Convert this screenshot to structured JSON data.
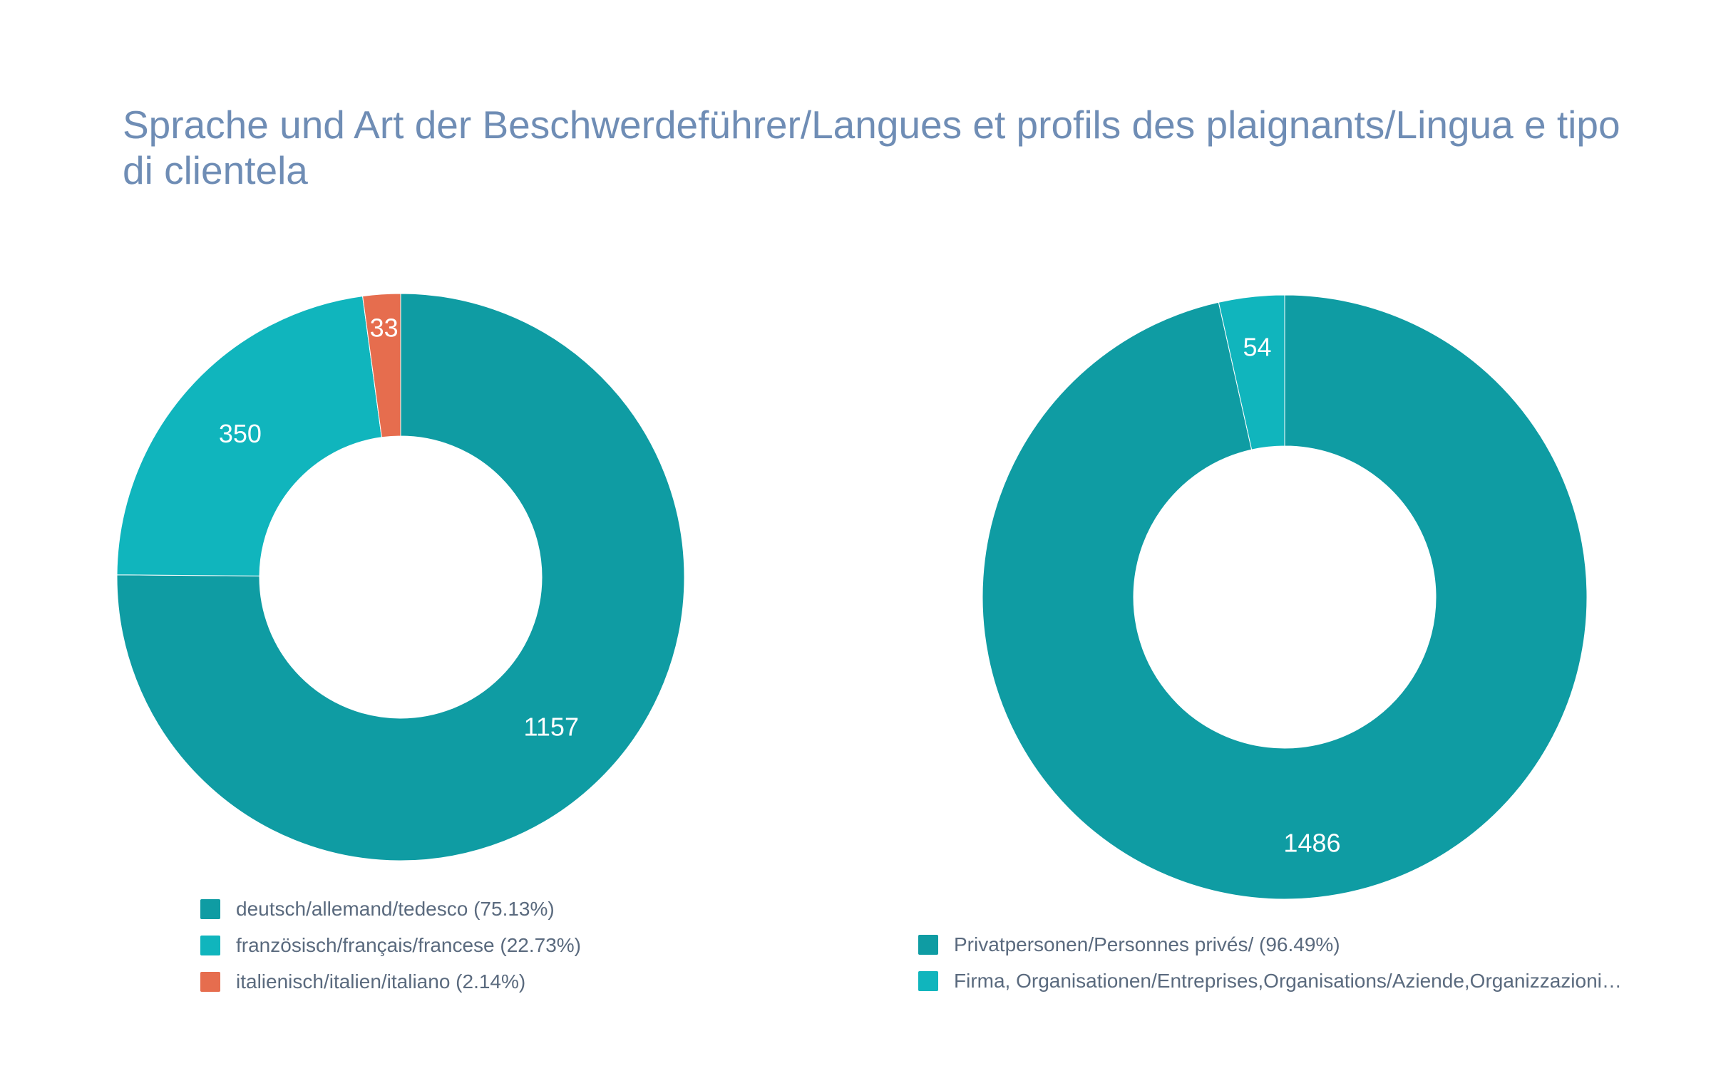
{
  "chart_title": "Sprache und Art der Beschwerdeführer/Langues et profils des plaignants/Lingua e tipo di clientela",
  "chart_data": [
    {
      "type": "pie",
      "donut": true,
      "title": "",
      "categories": [
        "deutsch/allemand/tedesco",
        "französisch/français/francese",
        "italienisch/italien/italiano"
      ],
      "values": [
        1157,
        350,
        33
      ],
      "value_labels": [
        "1157",
        "350",
        "33"
      ],
      "percentages": [
        "75.13%",
        "22.73%",
        "2.14%"
      ],
      "legend_labels": [
        "deutsch/allemand/tedesco (75.13%)",
        "französisch/français/francese (22.73%)",
        "italienisch/italien/italiano (2.14%)"
      ],
      "colors": [
        "#0f9ca3",
        "#10b5bd",
        "#e66d4e"
      ],
      "legend_position": "bottom"
    },
    {
      "type": "pie",
      "donut": true,
      "title": "",
      "categories": [
        "Privatpersonen/Personnes privés/",
        "Firma, Organisationen/Entreprises,Organisations/Aziende,Organizzazioni"
      ],
      "values": [
        1486,
        54
      ],
      "value_labels": [
        "1486",
        "54"
      ],
      "percentages": [
        "96.49%",
        "3.51%"
      ],
      "legend_labels": [
        "Privatpersonen/Personnes privés/ (96.49%)",
        "Firma, Organisationen/Entreprises,Organisations/Aziende,Organizzazioni…"
      ],
      "colors": [
        "#0f9ca3",
        "#10b5bd"
      ],
      "legend_position": "bottom"
    }
  ]
}
